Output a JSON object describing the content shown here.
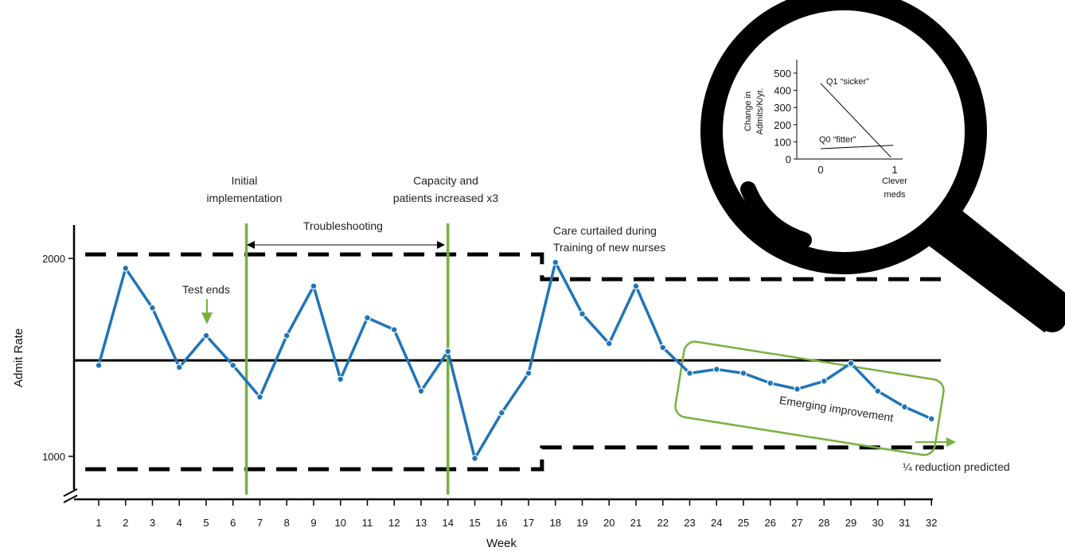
{
  "chart_data": [
    {
      "type": "line",
      "xlabel": "Week",
      "ylabel": "Admit Rate",
      "x": [
        1,
        2,
        3,
        4,
        5,
        6,
        7,
        8,
        9,
        10,
        11,
        12,
        13,
        14,
        15,
        16,
        17,
        18,
        19,
        20,
        21,
        22,
        23,
        24,
        25,
        26,
        27,
        28,
        29,
        30,
        31,
        32
      ],
      "x_tick_labels": [
        "1",
        "2",
        "3",
        "4",
        "5",
        "6",
        "7",
        "8",
        "9",
        "10",
        "11",
        "12",
        "13",
        "14",
        "15",
        "16",
        "17",
        "18",
        "19",
        "20",
        "21",
        "22",
        "23",
        "24",
        "25",
        "26",
        "27",
        "28",
        "29",
        "30",
        "31",
        "32"
      ],
      "y_tick_labels": [
        "1000",
        "2000"
      ],
      "ylim": [
        850,
        2150
      ],
      "series": [
        {
          "color": "#1f74b8",
          "values": [
            1460,
            1950,
            1750,
            1450,
            1610,
            1460,
            1300,
            1610,
            1860,
            1390,
            1700,
            1640,
            1330,
            1530,
            990,
            1220,
            1420,
            1980,
            1720,
            1570,
            1860,
            1550,
            1420,
            1440,
            1420,
            1370,
            1340,
            1380,
            1470,
            1330,
            1250,
            1190
          ]
        }
      ],
      "center_line": 1485,
      "upper_control_limit": [
        {
          "x_from": 0.5,
          "x_to": 17.5,
          "value": 2020
        },
        {
          "x_from": 17.5,
          "x_to": 32.5,
          "value": 1895
        }
      ],
      "lower_control_limit": [
        {
          "x_from": 0.5,
          "x_to": 17.5,
          "value": 935
        },
        {
          "x_from": 17.5,
          "x_to": 32.5,
          "value": 1045
        }
      ],
      "phase_lines_at_week": [
        6.5,
        14
      ],
      "annotations": {
        "test_ends": "Test ends",
        "initial_implementation_line1": "Initial",
        "initial_implementation_line2": "implementation",
        "troubleshooting": "Troubleshooting",
        "capacity_line1": "Capacity and",
        "capacity_line2": "patients increased x3",
        "care_curtailed_line1": "Care curtailed during",
        "care_curtailed_line2": "Training of new nurses",
        "emerging_improvement": "Emerging improvement",
        "reduction_predicted": "¼ reduction predicted"
      },
      "colors": {
        "series": "#1f74b8",
        "phase": "#77b140",
        "limits": "#000000"
      },
      "grid": false,
      "legend": "none"
    },
    {
      "type": "line",
      "xlabel_line1": "Clever",
      "xlabel_line2": "meds",
      "ylabel_line1": "Change in",
      "ylabel_line2": "Admits/K/yr.",
      "x_tick_labels": [
        "0",
        "1"
      ],
      "y_tick_labels": [
        "0",
        "100",
        "200",
        "300",
        "400",
        "500"
      ],
      "xlim": [
        -0.3,
        1.05
      ],
      "ylim": [
        0,
        600
      ],
      "series": [
        {
          "name": "Q1 “sicker”",
          "x": [
            0,
            0.95
          ],
          "values": [
            440,
            10
          ]
        },
        {
          "name": "Q0 “fitter”",
          "x": [
            0,
            0.98
          ],
          "values": [
            60,
            80
          ]
        }
      ],
      "legend": "inline labels"
    }
  ]
}
